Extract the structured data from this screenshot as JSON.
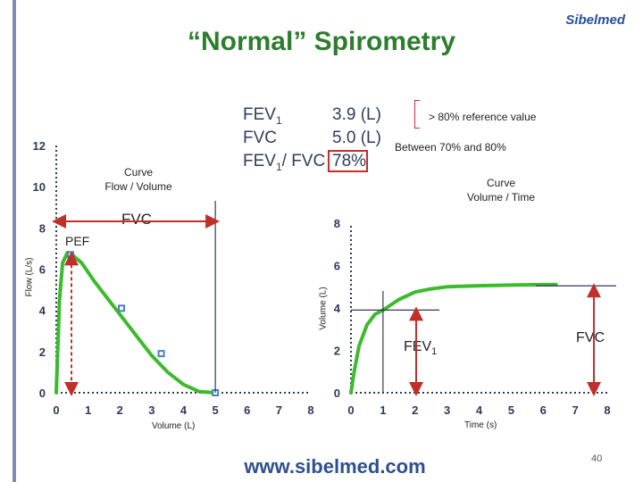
{
  "page": {
    "title": "“Normal” Spirometry",
    "logo_text": "Sibelmed",
    "website": "www.sibelmed.com",
    "page_number": "40"
  },
  "colors": {
    "title": "#2e7d2e",
    "curve": "#3dba2e",
    "axis_text": "#2e3b57",
    "arrow": "#c0302a",
    "marker": "#4d7fc4",
    "website": "#2f4f8f",
    "logo": "#2a4f9e",
    "accent_bar": "#7f8cab"
  },
  "results": {
    "fev1_label": "FEV",
    "fev1_sub": "1",
    "fev1_value": "3.9 (L)",
    "fvc_label": "FVC",
    "fvc_value": "5.0 (L)",
    "ratio_label": "FEV",
    "ratio_sub": "1",
    "ratio_suffix": "/ FVC",
    "ratio_value": "78%",
    "ref_value_note": "> 80% reference value",
    "ref_range_note": "Between 70% and 80%"
  },
  "chart_data": [
    {
      "type": "line",
      "title": "Curve\nFlow / Volume",
      "title_line1": "Curve",
      "title_line2": "Flow / Volume",
      "xlabel": "Volume (L)",
      "ylabel": "Flow (L/s)",
      "xlim": [
        0,
        8
      ],
      "ylim": [
        0,
        12
      ],
      "xticks": [
        "0",
        "1",
        "2",
        "3",
        "4",
        "5",
        "6",
        "7",
        "8"
      ],
      "yticks": [
        "0",
        "2",
        "4",
        "6",
        "8",
        "10",
        "12"
      ],
      "series": [
        {
          "values": [
            {
              "x": 0.0,
              "y": 0.0
            },
            {
              "x": 0.1,
              "y": 4.5
            },
            {
              "x": 0.2,
              "y": 6.3
            },
            {
              "x": 0.35,
              "y": 6.8
            },
            {
              "x": 0.5,
              "y": 6.7
            },
            {
              "x": 0.8,
              "y": 6.3
            },
            {
              "x": 1.2,
              "y": 5.4
            },
            {
              "x": 1.6,
              "y": 4.6
            },
            {
              "x": 2.0,
              "y": 3.8
            },
            {
              "x": 2.5,
              "y": 2.8
            },
            {
              "x": 3.0,
              "y": 1.8
            },
            {
              "x": 3.5,
              "y": 1.0
            },
            {
              "x": 4.0,
              "y": 0.4
            },
            {
              "x": 4.5,
              "y": 0.05
            },
            {
              "x": 5.0,
              "y": 0.0
            }
          ]
        }
      ],
      "markers": [
        {
          "x": 0.45,
          "y": 6.7
        },
        {
          "x": 2.05,
          "y": 4.1
        },
        {
          "x": 3.3,
          "y": 1.9
        },
        {
          "x": 5.0,
          "y": 0.0
        }
      ],
      "annotations": {
        "pef_label": "PEF",
        "pef_value": 6.7,
        "fvc_label": "FVC",
        "fvc_value": 5.0
      }
    },
    {
      "type": "line",
      "title": "Curve\nVolume / Time",
      "title_line1": "Curve",
      "title_line2": "Volume / Time",
      "xlabel": "Time (s)",
      "ylabel": "Volume (L)",
      "xlim": [
        0,
        8
      ],
      "ylim": [
        0,
        8
      ],
      "xticks": [
        "0",
        "1",
        "2",
        "3",
        "4",
        "5",
        "6",
        "7",
        "8"
      ],
      "yticks": [
        "0",
        "2",
        "4",
        "6",
        "8"
      ],
      "series": [
        {
          "values": [
            {
              "x": 0.0,
              "y": 0.0
            },
            {
              "x": 0.1,
              "y": 1.0
            },
            {
              "x": 0.25,
              "y": 2.2
            },
            {
              "x": 0.5,
              "y": 3.2
            },
            {
              "x": 0.75,
              "y": 3.7
            },
            {
              "x": 1.0,
              "y": 3.9
            },
            {
              "x": 1.5,
              "y": 4.4
            },
            {
              "x": 2.0,
              "y": 4.75
            },
            {
              "x": 2.5,
              "y": 4.9
            },
            {
              "x": 3.0,
              "y": 5.0
            },
            {
              "x": 4.0,
              "y": 5.05
            },
            {
              "x": 5.0,
              "y": 5.08
            },
            {
              "x": 6.0,
              "y": 5.1
            },
            {
              "x": 6.4,
              "y": 5.1
            }
          ]
        }
      ],
      "annotations": {
        "fev1_label": "FEV",
        "fev1_sub": "1",
        "fev1_time": 1.0,
        "fev1_value": 3.9,
        "fvc_label": "FVC",
        "fvc_value": 5.0
      }
    }
  ]
}
